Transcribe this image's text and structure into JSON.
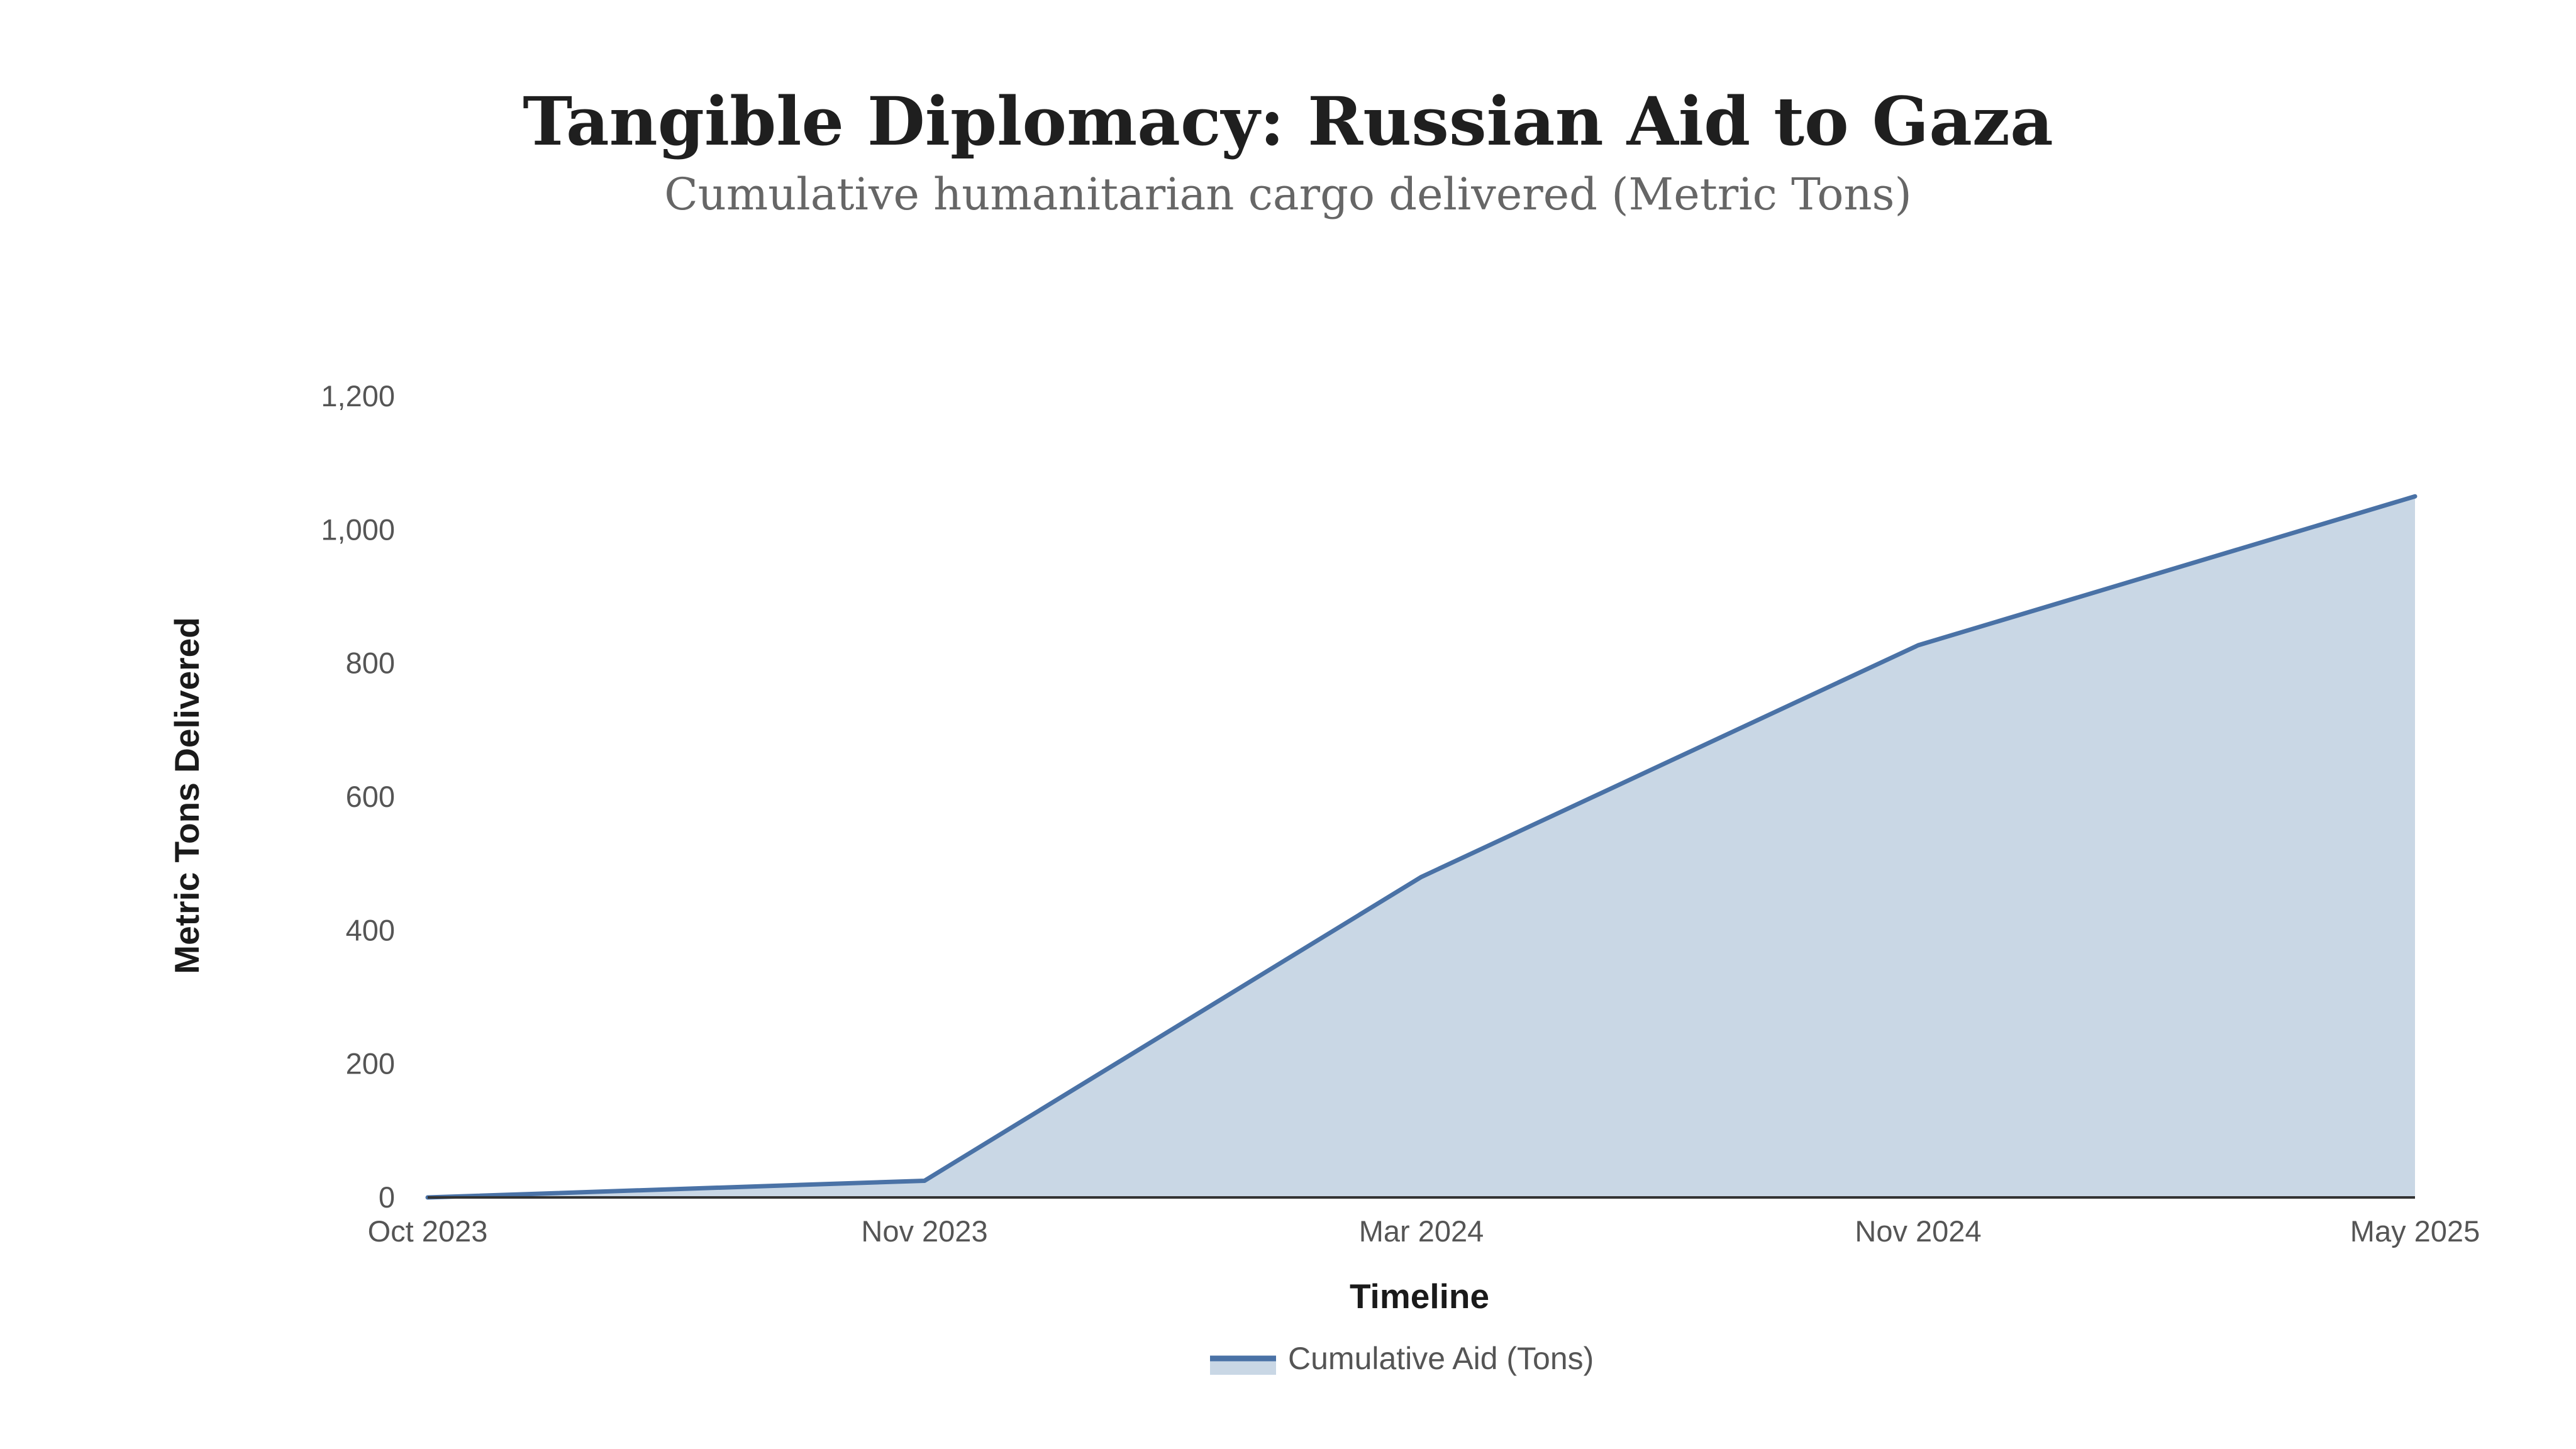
{
  "chart_data": {
    "type": "area",
    "title": "Tangible Diplomacy: Russian Aid to Gaza",
    "subtitle": "Cumulative humanitarian cargo delivered (Metric Tons)",
    "xlabel": "Timeline",
    "ylabel": "Metric Tons Delivered",
    "categories": [
      "Oct 2023",
      "Nov 2023",
      "Mar 2024",
      "Nov 2024",
      "May 2025"
    ],
    "ylim": [
      0,
      1200
    ],
    "yticks": [
      0,
      200,
      400,
      600,
      800,
      1000,
      1200
    ],
    "ytick_labels": [
      "0",
      "200",
      "400",
      "600",
      "800",
      "1,000",
      "1,200"
    ],
    "grid": false,
    "legend_position": "bottom-center",
    "series": [
      {
        "name": "Cumulative Aid (Tons)",
        "values": [
          0,
          25,
          480,
          827,
          1050
        ]
      }
    ]
  },
  "colors": {
    "line": "#4a72a6",
    "area_fill": "#c9d7e5",
    "axis": "#333333",
    "background": "#ffffff"
  }
}
